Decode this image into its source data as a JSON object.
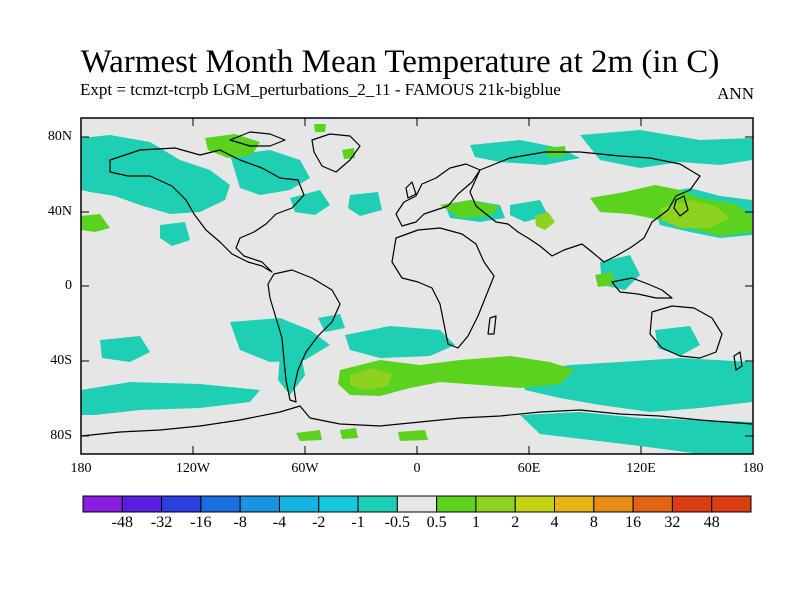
{
  "title": "Warmest Month Mean Temperature at 2m (in C)",
  "subtitle": "Expt = tcmzt-tcrpb   LGM_perturbations_2_11 - FAMOUS 21k-bigblue",
  "season": "ANN",
  "lat_labels": [
    "80N",
    "40N",
    "0",
    "40S",
    "80S"
  ],
  "lon_labels": [
    "180",
    "120W",
    "60W",
    "0",
    "60E",
    "120E",
    "180"
  ],
  "colorbar": {
    "labels": [
      "-48",
      "-32",
      "-16",
      "-8",
      "-4",
      "-2",
      "-1",
      "-0.5",
      "0.5",
      "1",
      "2",
      "4",
      "8",
      "16",
      "32",
      "48"
    ],
    "colors": [
      "#8a1ee0",
      "#5a1ee0",
      "#2d3ee0",
      "#1a6ee0",
      "#1a94e0",
      "#14b4e0",
      "#14c8dc",
      "#1ecfb4",
      "#e6e6e6",
      "#5ad21e",
      "#8cd21e",
      "#c4d214",
      "#e6b414",
      "#e68c14",
      "#e06414",
      "#dc3c14"
    ]
  },
  "map_style": {
    "land_sea_background": "#e6e6e6",
    "coastline": "#000000",
    "cyan_anomaly": "#1ecfb4",
    "light_green_anomaly": "#5ad21e",
    "yellow_green_anomaly": "#8cd21e"
  }
}
